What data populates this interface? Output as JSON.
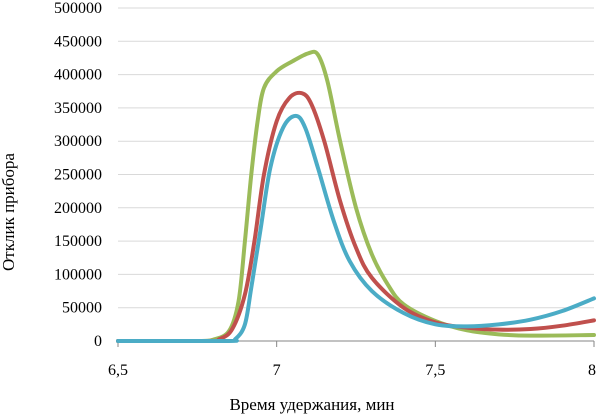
{
  "chart_data": {
    "type": "line",
    "xlabel": "Время удержания, мин",
    "ylabel": "Отклик прибора",
    "xlim": [
      6.5,
      8
    ],
    "ylim": [
      0,
      500000
    ],
    "x_ticks": [
      "6,5",
      "7",
      "7,5",
      "8"
    ],
    "x_tick_values": [
      6.5,
      7,
      7.5,
      8
    ],
    "y_ticks": [
      "0",
      "50000",
      "100000",
      "150000",
      "200000",
      "250000",
      "300000",
      "350000",
      "400000",
      "450000",
      "500000"
    ],
    "y_tick_values": [
      0,
      50000,
      100000,
      150000,
      200000,
      250000,
      300000,
      350000,
      400000,
      450000,
      500000
    ],
    "grid": "horizontal",
    "legend": "none",
    "series": [
      {
        "color": "#9bbb59",
        "points": [
          [
            6.5,
            0
          ],
          [
            6.75,
            0
          ],
          [
            6.8,
            2000
          ],
          [
            6.85,
            15000
          ],
          [
            6.88,
            60000
          ],
          [
            6.9,
            150000
          ],
          [
            6.92,
            250000
          ],
          [
            6.94,
            330000
          ],
          [
            6.96,
            380000
          ],
          [
            7.0,
            405000
          ],
          [
            7.05,
            420000
          ],
          [
            7.1,
            432000
          ],
          [
            7.13,
            430000
          ],
          [
            7.16,
            390000
          ],
          [
            7.2,
            300000
          ],
          [
            7.25,
            200000
          ],
          [
            7.3,
            130000
          ],
          [
            7.35,
            85000
          ],
          [
            7.4,
            55000
          ],
          [
            7.5,
            30000
          ],
          [
            7.6,
            16000
          ],
          [
            7.7,
            10000
          ],
          [
            7.8,
            8000
          ],
          [
            8.0,
            9000
          ]
        ]
      },
      {
        "color": "#c0504d",
        "points": [
          [
            6.5,
            0
          ],
          [
            6.78,
            0
          ],
          [
            6.82,
            3000
          ],
          [
            6.86,
            18000
          ],
          [
            6.9,
            70000
          ],
          [
            6.93,
            150000
          ],
          [
            6.96,
            250000
          ],
          [
            7.0,
            330000
          ],
          [
            7.04,
            365000
          ],
          [
            7.08,
            372000
          ],
          [
            7.11,
            355000
          ],
          [
            7.15,
            300000
          ],
          [
            7.2,
            210000
          ],
          [
            7.25,
            140000
          ],
          [
            7.3,
            95000
          ],
          [
            7.4,
            50000
          ],
          [
            7.5,
            28000
          ],
          [
            7.6,
            20000
          ],
          [
            7.7,
            17000
          ],
          [
            7.8,
            18000
          ],
          [
            7.9,
            23000
          ],
          [
            8.0,
            31000
          ]
        ]
      },
      {
        "color": "#4bacc6",
        "points": [
          [
            6.5,
            0
          ],
          [
            6.84,
            0
          ],
          [
            6.87,
            3000
          ],
          [
            6.9,
            25000
          ],
          [
            6.92,
            80000
          ],
          [
            6.95,
            170000
          ],
          [
            6.98,
            260000
          ],
          [
            7.02,
            320000
          ],
          [
            7.06,
            338000
          ],
          [
            7.09,
            320000
          ],
          [
            7.13,
            260000
          ],
          [
            7.18,
            180000
          ],
          [
            7.23,
            120000
          ],
          [
            7.3,
            75000
          ],
          [
            7.4,
            42000
          ],
          [
            7.5,
            25000
          ],
          [
            7.6,
            22000
          ],
          [
            7.7,
            25000
          ],
          [
            7.8,
            32000
          ],
          [
            7.9,
            45000
          ],
          [
            8.0,
            64000
          ]
        ]
      }
    ]
  }
}
